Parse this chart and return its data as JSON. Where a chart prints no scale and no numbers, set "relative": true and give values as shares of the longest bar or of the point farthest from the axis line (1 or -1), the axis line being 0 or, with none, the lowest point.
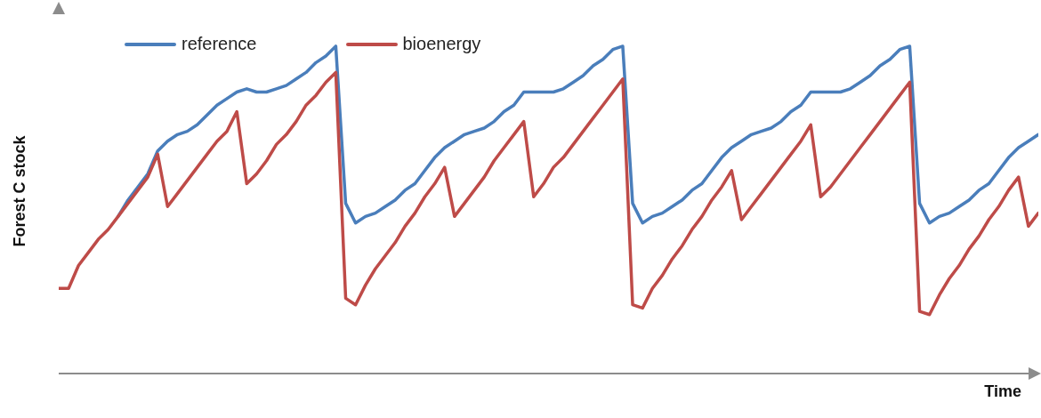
{
  "chart_data": {
    "type": "line",
    "ylabel": "Forest C stock",
    "xlabel": "Time",
    "relative": true,
    "legend": "top left",
    "grid": false,
    "marker": "none",
    "line_style": "solid",
    "categories": [
      null,
      null,
      null,
      null,
      null,
      null,
      null,
      null,
      null,
      null,
      null,
      null,
      null,
      null,
      null,
      null,
      null,
      null,
      null,
      null,
      null,
      null,
      null,
      null,
      null,
      null,
      null,
      null,
      null,
      null,
      null,
      null,
      null,
      null,
      null,
      null,
      null,
      null,
      null,
      null,
      null,
      null,
      null,
      null,
      null,
      null,
      null,
      null,
      null,
      null,
      null,
      null,
      null,
      null,
      null,
      null,
      null,
      null,
      null,
      null,
      null,
      null,
      null,
      null,
      null,
      null,
      null,
      null,
      null,
      null,
      null,
      null,
      null,
      null,
      null,
      null,
      null,
      null,
      null,
      null,
      null,
      null,
      null,
      null,
      null,
      null,
      null,
      null,
      null,
      null,
      null,
      null,
      null,
      null,
      null,
      null,
      null,
      null,
      null,
      null
    ],
    "series": [
      {
        "name": "reference",
        "color": "#4a7ebb",
        "values": [
          null,
          null,
          null,
          null,
          null,
          null,
          0.48,
          0.53,
          0.57,
          0.61,
          0.68,
          0.71,
          0.73,
          0.74,
          0.76,
          0.79,
          0.82,
          0.84,
          0.86,
          0.87,
          0.86,
          0.86,
          0.87,
          0.88,
          0.9,
          0.92,
          0.95,
          0.97,
          1,
          0.52,
          0.46,
          0.48,
          0.49,
          0.51,
          0.53,
          0.56,
          0.58,
          0.62,
          0.66,
          0.69,
          0.71,
          0.73,
          0.74,
          0.75,
          0.77,
          0.8,
          0.82,
          0.86,
          0.86,
          0.86,
          0.86,
          0.87,
          0.89,
          0.91,
          0.94,
          0.96,
          0.99,
          1,
          0.52,
          0.46,
          0.48,
          0.49,
          0.51,
          0.53,
          0.56,
          0.58,
          0.62,
          0.66,
          0.69,
          0.71,
          0.73,
          0.74,
          0.75,
          0.77,
          0.8,
          0.82,
          0.86,
          0.86,
          0.86,
          0.86,
          0.87,
          0.89,
          0.91,
          0.94,
          0.96,
          0.99,
          1,
          0.52,
          0.46,
          0.48,
          0.49,
          0.51,
          0.53,
          0.56,
          0.58,
          0.62,
          0.66,
          0.69,
          0.71,
          0.73
        ]
      },
      {
        "name": "bioenergy",
        "color": "#be4b48",
        "values": [
          0.26,
          0.26,
          0.33,
          0.37,
          0.41,
          0.44,
          0.48,
          0.52,
          0.56,
          0.6,
          0.67,
          0.51,
          0.55,
          0.59,
          0.63,
          0.67,
          0.71,
          0.74,
          0.8,
          0.58,
          0.61,
          0.65,
          0.7,
          0.73,
          0.77,
          0.82,
          0.85,
          0.89,
          0.92,
          0.23,
          0.21,
          0.27,
          0.32,
          0.36,
          0.4,
          0.45,
          0.49,
          0.54,
          0.58,
          0.63,
          0.48,
          0.52,
          0.56,
          0.6,
          0.65,
          0.69,
          0.73,
          0.77,
          0.54,
          0.58,
          0.63,
          0.66,
          0.7,
          0.74,
          0.78,
          0.82,
          0.86,
          0.9,
          0.21,
          0.2,
          0.26,
          0.3,
          0.35,
          0.39,
          0.44,
          0.48,
          0.53,
          0.57,
          0.62,
          0.47,
          0.51,
          0.55,
          0.59,
          0.63,
          0.67,
          0.71,
          0.76,
          0.54,
          0.57,
          0.61,
          0.65,
          0.69,
          0.73,
          0.77,
          0.81,
          0.85,
          0.89,
          0.19,
          0.18,
          0.24,
          0.29,
          0.33,
          0.38,
          0.42,
          0.47,
          0.51,
          0.56,
          0.6,
          0.45,
          0.49
        ]
      }
    ]
  }
}
